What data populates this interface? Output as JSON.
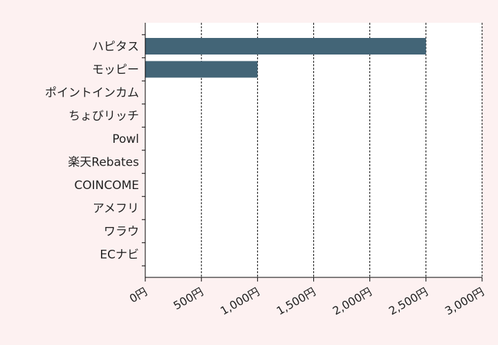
{
  "chart_data": {
    "type": "bar",
    "orientation": "horizontal",
    "categories": [
      "ハピタス",
      "モッピー",
      "ポイントインカム",
      "ちょびリッチ",
      "Powl",
      "楽天Rebates",
      "COINCOME",
      "アメフリ",
      "ワラウ",
      "ECナビ"
    ],
    "values": [
      2500,
      1000,
      0,
      0,
      0,
      0,
      0,
      0,
      0,
      0
    ],
    "xlim": [
      0,
      3000
    ],
    "xticks": [
      0,
      500,
      1000,
      1500,
      2000,
      2500,
      3000
    ],
    "xtick_labels": [
      "0円",
      "500円",
      "1,000円",
      "1,500円",
      "2,000円",
      "2,500円",
      "3,000円"
    ],
    "grid": "vertical dashed",
    "colors": {
      "bar": "#436577",
      "background": "#fdf1f1",
      "plot_background": "#ffffff",
      "grid": "#000000"
    }
  }
}
